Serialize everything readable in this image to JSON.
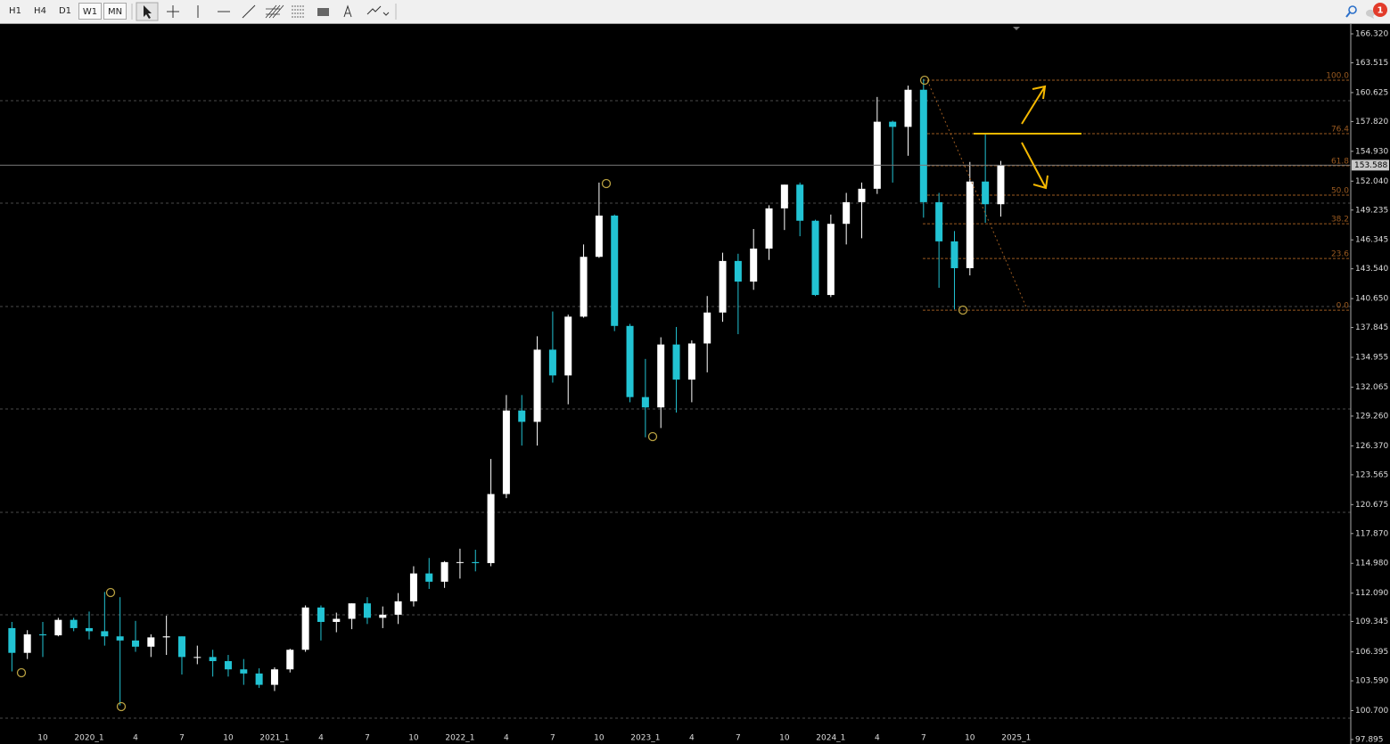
{
  "toolbar": {
    "timeframes": [
      "H1",
      "H4",
      "D1",
      "W1",
      "MN"
    ],
    "notifications": "1"
  },
  "chart_data": {
    "type": "candlestick",
    "categories": [
      null,
      null,
      "10",
      null,
      null,
      "2020_1",
      null,
      null,
      "4",
      null,
      null,
      "7",
      null,
      null,
      "10",
      null,
      null,
      "2021_1",
      null,
      null,
      "4",
      null,
      null,
      "7",
      null,
      null,
      "10",
      null,
      null,
      "2022_1",
      null,
      null,
      "4",
      null,
      null,
      "7",
      null,
      null,
      "10",
      null,
      null,
      "2023_1",
      null,
      null,
      "4",
      null,
      null,
      "7",
      null,
      null,
      "10",
      null,
      null,
      "2024_1",
      null,
      null,
      "4",
      null,
      null,
      "7",
      null,
      null,
      "10",
      null,
      null,
      "2025_1"
    ],
    "ohlc": [
      [
        108.7,
        109.3,
        104.5,
        106.3
      ],
      [
        106.3,
        108.5,
        105.7,
        108.1
      ],
      [
        108.1,
        109.3,
        105.9,
        108.0
      ],
      [
        108.0,
        109.7,
        107.9,
        109.5
      ],
      [
        109.5,
        109.7,
        108.4,
        108.7
      ],
      [
        108.7,
        110.3,
        107.6,
        108.4
      ],
      [
        108.4,
        112.2,
        107.0,
        107.9
      ],
      [
        107.9,
        111.7,
        101.2,
        107.5
      ],
      [
        107.5,
        109.4,
        106.4,
        106.9
      ],
      [
        106.9,
        108.1,
        105.9,
        107.8
      ],
      [
        107.8,
        109.9,
        106.1,
        107.9
      ],
      [
        107.9,
        107.9,
        104.2,
        105.9
      ],
      [
        105.9,
        107.0,
        105.2,
        105.9
      ],
      [
        105.9,
        106.6,
        104.0,
        105.5
      ],
      [
        105.5,
        106.1,
        104.0,
        104.7
      ],
      [
        104.7,
        105.7,
        103.2,
        104.3
      ],
      [
        104.3,
        104.8,
        102.9,
        103.2
      ],
      [
        103.2,
        104.9,
        102.6,
        104.7
      ],
      [
        104.7,
        106.7,
        104.4,
        106.6
      ],
      [
        106.6,
        110.9,
        106.4,
        110.7
      ],
      [
        110.7,
        110.9,
        107.5,
        109.3
      ],
      [
        109.3,
        110.2,
        108.3,
        109.6
      ],
      [
        109.6,
        111.1,
        108.6,
        111.1
      ],
      [
        111.1,
        111.7,
        109.1,
        109.7
      ],
      [
        109.7,
        110.8,
        108.7,
        110.0
      ],
      [
        110.0,
        112.1,
        109.1,
        111.3
      ],
      [
        111.3,
        114.7,
        110.8,
        114.0
      ],
      [
        114.0,
        115.5,
        112.5,
        113.2
      ],
      [
        113.2,
        115.2,
        112.6,
        115.1
      ],
      [
        115.1,
        116.4,
        113.5,
        115.1
      ],
      [
        115.1,
        116.3,
        114.2,
        115.0
      ],
      [
        115.0,
        125.1,
        114.7,
        121.7
      ],
      [
        121.7,
        131.3,
        121.3,
        129.8
      ],
      [
        129.8,
        131.3,
        126.4,
        128.7
      ],
      [
        128.7,
        137.0,
        126.4,
        135.7
      ],
      [
        135.7,
        139.4,
        132.5,
        133.2
      ],
      [
        133.2,
        139.1,
        130.4,
        138.9
      ],
      [
        138.9,
        145.9,
        138.8,
        144.7
      ],
      [
        144.7,
        151.9,
        144.6,
        148.7
      ],
      [
        148.7,
        148.8,
        137.5,
        138.0
      ],
      [
        138.0,
        138.2,
        130.6,
        131.1
      ],
      [
        131.1,
        134.8,
        127.2,
        130.1
      ],
      [
        130.1,
        136.9,
        128.1,
        136.2
      ],
      [
        136.2,
        137.9,
        129.6,
        132.8
      ],
      [
        132.8,
        136.6,
        130.6,
        136.3
      ],
      [
        136.3,
        140.9,
        133.5,
        139.3
      ],
      [
        139.3,
        145.1,
        138.4,
        144.3
      ],
      [
        144.3,
        145.0,
        137.2,
        142.3
      ],
      [
        142.3,
        147.4,
        141.5,
        145.5
      ],
      [
        145.5,
        149.7,
        144.4,
        149.4
      ],
      [
        149.4,
        151.7,
        147.3,
        151.7
      ],
      [
        151.7,
        151.9,
        146.7,
        148.2
      ],
      [
        148.2,
        148.3,
        140.9,
        141.0
      ],
      [
        141.0,
        148.8,
        140.8,
        147.9
      ],
      [
        147.9,
        150.9,
        145.9,
        150.0
      ],
      [
        150.0,
        151.9,
        146.5,
        151.3
      ],
      [
        151.3,
        160.2,
        150.8,
        157.8
      ],
      [
        157.8,
        157.9,
        151.9,
        157.3
      ],
      [
        157.3,
        161.3,
        154.5,
        160.9
      ],
      [
        160.9,
        161.95,
        148.5,
        150.0
      ],
      [
        150.0,
        150.9,
        141.7,
        146.2
      ],
      [
        146.2,
        147.2,
        139.6,
        143.6
      ],
      [
        143.6,
        153.9,
        142.9,
        152.0
      ],
      [
        152.0,
        156.7,
        148.0,
        149.8
      ],
      [
        149.8,
        154.0,
        148.6,
        153.588
      ],
      null
    ],
    "up_color": "#ffffff",
    "down_color": "#22c3d3",
    "ylim": [
      97.895,
      166.32
    ],
    "yticks": [
      {
        "value": 166.32,
        "label": "166.320"
      },
      {
        "value": 163.515,
        "label": "163.515"
      },
      {
        "value": 160.625,
        "label": "160.625"
      },
      {
        "value": 157.82,
        "label": "157.820"
      },
      {
        "value": 154.93,
        "label": "154.930"
      },
      {
        "value": 152.04,
        "label": "152.040"
      },
      {
        "value": 149.235,
        "label": "149.235"
      },
      {
        "value": 146.345,
        "label": "146.345"
      },
      {
        "value": 143.54,
        "label": "143.540"
      },
      {
        "value": 140.65,
        "label": "140.650"
      },
      {
        "value": 137.845,
        "label": "137.845"
      },
      {
        "value": 134.955,
        "label": "134.955"
      },
      {
        "value": 132.065,
        "label": "132.065"
      },
      {
        "value": 129.26,
        "label": "129.260"
      },
      {
        "value": 126.37,
        "label": "126.370"
      },
      {
        "value": 123.565,
        "label": "123.565"
      },
      {
        "value": 120.675,
        "label": "120.675"
      },
      {
        "value": 117.87,
        "label": "117.870"
      },
      {
        "value": 114.98,
        "label": "114.980"
      },
      {
        "value": 112.09,
        "label": "112.090"
      },
      {
        "value": 109.345,
        "label": "109.345"
      },
      {
        "value": 106.395,
        "label": "106.395"
      },
      {
        "value": 103.59,
        "label": "103.590"
      },
      {
        "value": 100.7,
        "label": "100.700"
      },
      {
        "value": 97.895,
        "label": "97.895"
      }
    ],
    "current_price": 153.588,
    "fibonacci": [
      {
        "label": "100.0",
        "price": 161.83
      },
      {
        "label": "76.4",
        "price": 156.64
      },
      {
        "label": "61.8",
        "price": 153.53
      },
      {
        "label": "50.0",
        "price": 150.68
      },
      {
        "label": "38.2",
        "price": 147.91
      },
      {
        "label": "23.6",
        "price": 144.54
      },
      {
        "label": "0.0",
        "price": 139.53
      }
    ],
    "fib_color": "#9a5a20"
  }
}
